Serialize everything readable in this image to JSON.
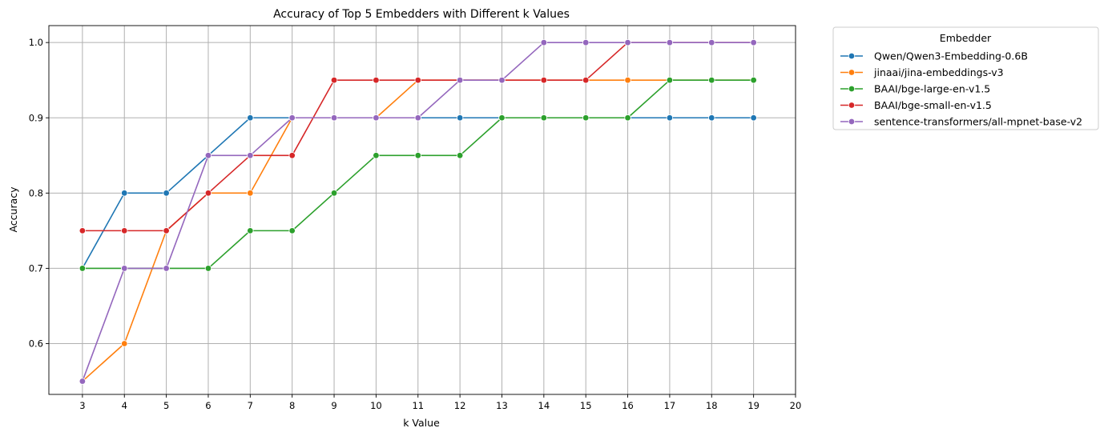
{
  "chart_data": {
    "type": "line",
    "title": "Accuracy of Top 5 Embedders with Different k Values",
    "xlabel": "k Value",
    "ylabel": "Accuracy",
    "x": [
      3,
      4,
      5,
      6,
      7,
      8,
      9,
      10,
      11,
      12,
      13,
      14,
      15,
      16,
      17,
      18,
      19
    ],
    "x_ticks": [
      3,
      4,
      5,
      6,
      7,
      8,
      9,
      10,
      11,
      12,
      13,
      14,
      15,
      16,
      17,
      18,
      19,
      20
    ],
    "y_ticks": [
      0.6,
      0.7,
      0.8,
      0.9,
      1.0
    ],
    "y_tick_labels": [
      "0.6",
      "0.7",
      "0.8",
      "0.9",
      "1.0"
    ],
    "xlim": [
      2.2,
      20
    ],
    "ylim": [
      0.5325,
      1.0225
    ],
    "grid": true,
    "legend": {
      "title": "Embedder",
      "placement": "outside-upper-right"
    },
    "series": [
      {
        "name": "Qwen/Qwen3-Embedding-0.6B",
        "color": "#1f77b4",
        "values": [
          0.7,
          0.8,
          0.8,
          0.85,
          0.9,
          0.9,
          0.9,
          0.9,
          0.9,
          0.9,
          0.9,
          0.9,
          0.9,
          0.9,
          0.9,
          0.9,
          0.9
        ]
      },
      {
        "name": "jinaai/jina-embeddings-v3",
        "color": "#ff7f0e",
        "values": [
          0.55,
          0.6,
          0.75,
          0.8,
          0.8,
          0.9,
          0.9,
          0.9,
          0.95,
          0.95,
          0.95,
          0.95,
          0.95,
          0.95,
          0.95,
          0.95,
          0.95
        ]
      },
      {
        "name": "BAAI/bge-large-en-v1.5",
        "color": "#2ca02c",
        "values": [
          0.7,
          0.7,
          0.7,
          0.7,
          0.75,
          0.75,
          0.8,
          0.85,
          0.85,
          0.85,
          0.9,
          0.9,
          0.9,
          0.9,
          0.95,
          0.95,
          0.95
        ]
      },
      {
        "name": "BAAI/bge-small-en-v1.5",
        "color": "#d62728",
        "values": [
          0.75,
          0.75,
          0.75,
          0.8,
          0.85,
          0.85,
          0.95,
          0.95,
          0.95,
          0.95,
          0.95,
          0.95,
          0.95,
          1.0,
          1.0,
          1.0,
          1.0
        ]
      },
      {
        "name": "sentence-transformers/all-mpnet-base-v2",
        "color": "#9467bd",
        "values": [
          0.55,
          0.7,
          0.7,
          0.85,
          0.85,
          0.9,
          0.9,
          0.9,
          0.9,
          0.95,
          0.95,
          1.0,
          1.0,
          1.0,
          1.0,
          1.0,
          1.0
        ]
      }
    ]
  }
}
